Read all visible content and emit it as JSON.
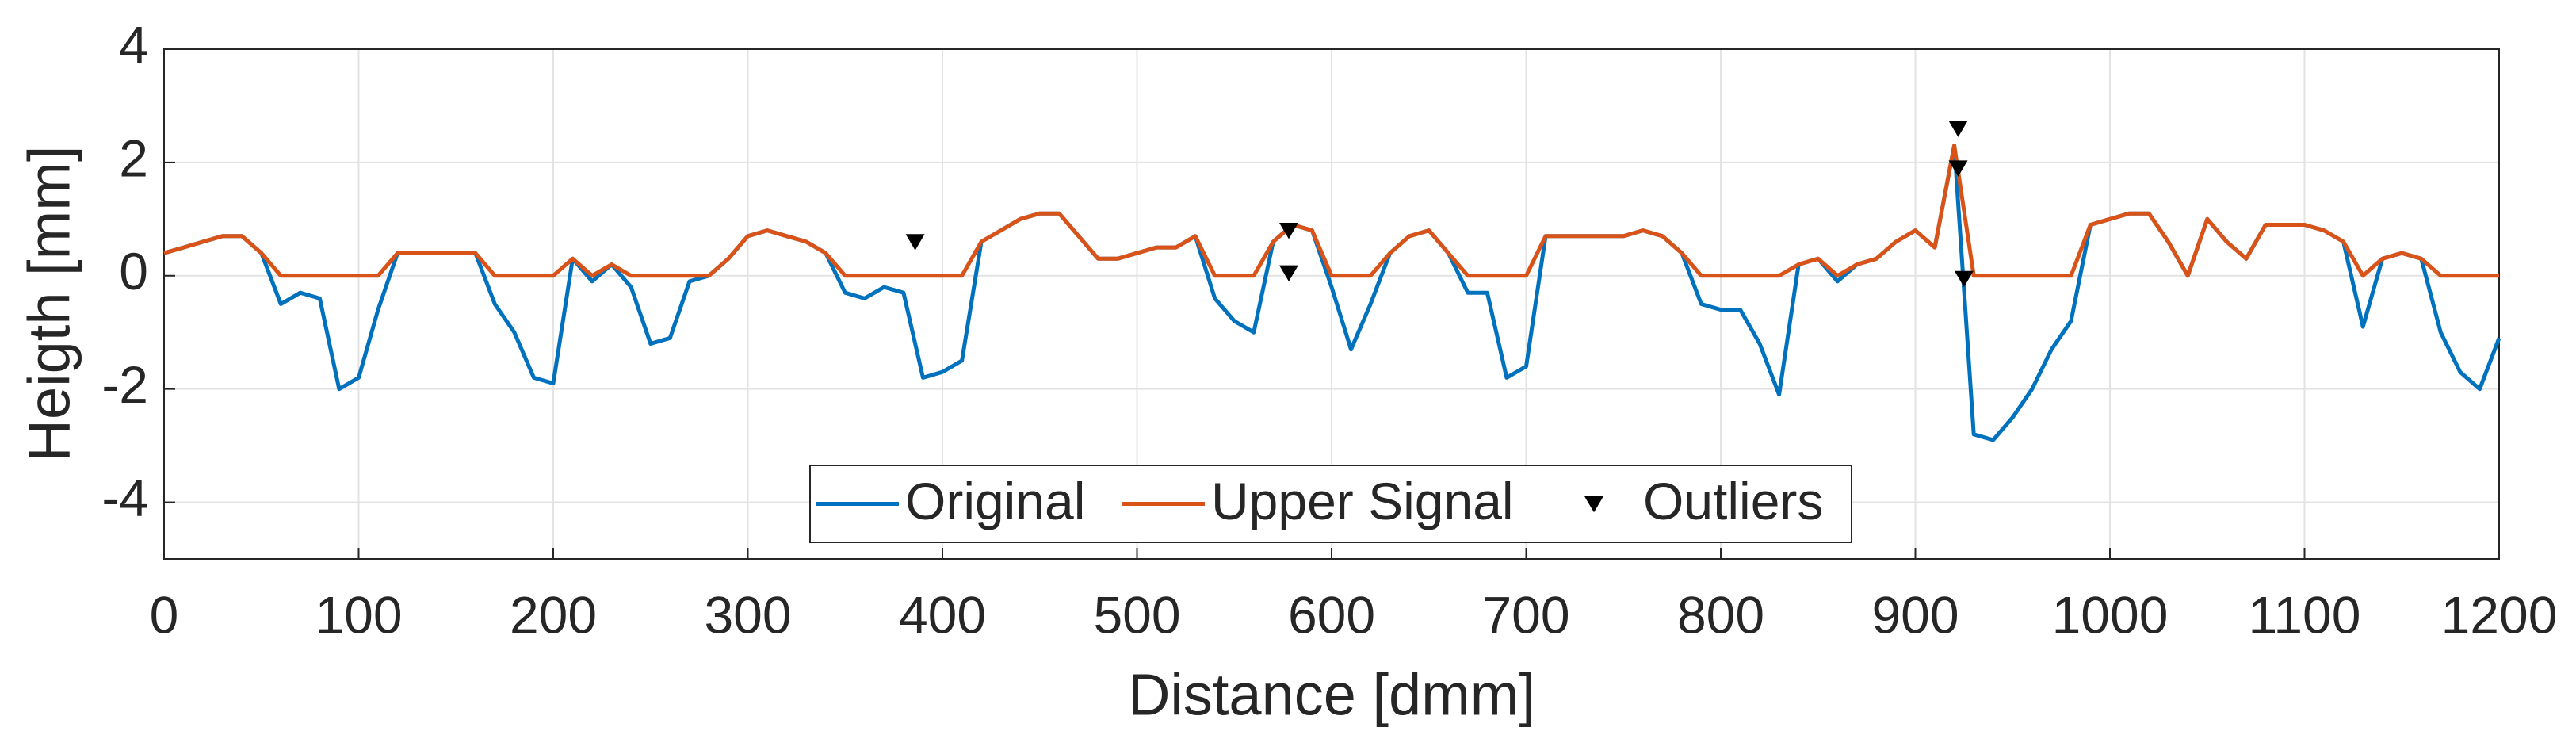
{
  "chart_data": {
    "type": "line",
    "xlabel": "Distance [dmm]",
    "ylabel": "Heigth [mm]",
    "x": [
      0,
      10,
      20,
      30,
      40,
      50,
      60,
      70,
      80,
      90,
      100,
      110,
      120,
      130,
      140,
      150,
      160,
      170,
      180,
      190,
      200,
      210,
      220,
      230,
      240,
      250,
      260,
      270,
      280,
      290,
      300,
      310,
      320,
      330,
      340,
      350,
      360,
      370,
      380,
      390,
      400,
      410,
      420,
      430,
      440,
      450,
      460,
      470,
      480,
      490,
      500,
      510,
      520,
      530,
      540,
      550,
      560,
      570,
      580,
      590,
      600,
      610,
      620,
      630,
      640,
      650,
      660,
      670,
      680,
      690,
      700,
      710,
      720,
      730,
      740,
      750,
      760,
      770,
      780,
      790,
      800,
      810,
      820,
      830,
      840,
      850,
      860,
      870,
      880,
      890,
      900,
      910,
      920,
      930,
      940,
      950,
      960,
      970,
      980,
      990,
      1000,
      1010,
      1020,
      1030,
      1040,
      1050,
      1060,
      1070,
      1080,
      1090,
      1100,
      1110,
      1120,
      1130,
      1140,
      1150,
      1160,
      1170,
      1180,
      1190,
      1200
    ],
    "series": [
      {
        "name": "Original",
        "color": "#0072bd",
        "values": [
          0.4,
          0.5,
          0.6,
          0.7,
          0.7,
          0.4,
          -0.5,
          -0.3,
          -0.4,
          -2.0,
          -1.8,
          -0.6,
          0.4,
          0.4,
          0.4,
          0.4,
          0.4,
          -0.5,
          -1.0,
          -1.8,
          -1.9,
          0.3,
          -0.1,
          0.2,
          -0.2,
          -1.2,
          -1.1,
          -0.1,
          0.0,
          0.3,
          0.7,
          0.8,
          0.7,
          0.6,
          0.4,
          -0.3,
          -0.4,
          -0.2,
          -0.3,
          -1.8,
          -1.7,
          -1.5,
          0.6,
          0.8,
          1.0,
          1.1,
          1.1,
          0.7,
          0.3,
          0.3,
          0.4,
          0.5,
          0.5,
          0.7,
          -0.4,
          -0.8,
          -1.0,
          0.6,
          0.9,
          0.8,
          -0.2,
          -1.3,
          -0.5,
          0.4,
          0.7,
          0.8,
          0.4,
          -0.3,
          -0.3,
          -1.8,
          -1.6,
          0.7,
          0.7,
          0.7,
          0.7,
          0.7,
          0.8,
          0.7,
          0.4,
          -0.5,
          -0.6,
          -0.6,
          -1.2,
          -2.1,
          0.2,
          0.3,
          -0.1,
          0.2,
          0.3,
          0.6,
          0.8,
          0.5,
          2.3,
          -2.8,
          -2.9,
          -2.5,
          -2.0,
          -1.3,
          -0.8,
          0.9,
          1.0,
          1.1,
          1.1,
          0.6,
          0.0,
          1.0,
          0.6,
          0.3,
          0.9,
          0.9,
          0.9,
          0.8,
          0.6,
          -0.9,
          0.3,
          0.4,
          0.3,
          -1.0,
          -1.7,
          -2.0,
          -1.1
        ]
      },
      {
        "name": "Upper Signal",
        "color": "#d95319",
        "values": [
          0.4,
          0.5,
          0.6,
          0.7,
          0.7,
          0.4,
          0,
          0,
          0,
          0,
          0,
          0,
          0.4,
          0.4,
          0.4,
          0.4,
          0.4,
          0,
          0,
          0,
          0,
          0.3,
          0,
          0.2,
          0,
          0,
          0,
          0,
          0,
          0.3,
          0.7,
          0.8,
          0.7,
          0.6,
          0.4,
          0,
          0,
          0,
          0,
          0,
          0,
          0,
          0.6,
          0.8,
          1.0,
          1.1,
          1.1,
          0.7,
          0.3,
          0.3,
          0.4,
          0.5,
          0.5,
          0.7,
          0,
          0,
          0,
          0.6,
          0.9,
          0.8,
          0,
          0,
          0,
          0.4,
          0.7,
          0.8,
          0.4,
          0,
          0,
          0,
          0,
          0.7,
          0.7,
          0.7,
          0.7,
          0.7,
          0.8,
          0.7,
          0.4,
          0,
          0,
          0,
          0,
          0,
          0.2,
          0.3,
          0,
          0.2,
          0.3,
          0.6,
          0.8,
          0.5,
          2.3,
          0,
          0,
          0,
          0,
          0,
          0,
          0.9,
          1.0,
          1.1,
          1.1,
          0.6,
          0,
          1.0,
          0.6,
          0.3,
          0.9,
          0.9,
          0.9,
          0.8,
          0.6,
          0,
          0.3,
          0.4,
          0.3,
          0,
          0,
          0,
          0
        ]
      },
      {
        "name": "Outliers",
        "type": "scatter",
        "marker": "v",
        "color": "#000000",
        "x": [
          386,
          578,
          578,
          922,
          922,
          925
        ],
        "values": [
          0.6,
          0.8,
          0.05,
          2.6,
          1.9,
          -0.05
        ]
      }
    ],
    "xlim": [
      0,
      1200
    ],
    "xticks": [
      0,
      100,
      200,
      300,
      400,
      500,
      600,
      700,
      800,
      900,
      1000,
      1100,
      1200
    ],
    "ylim": [
      -5,
      4
    ],
    "yticks": [
      -4,
      -2,
      0,
      2,
      4
    ],
    "grid": true,
    "legend": "bottom"
  }
}
